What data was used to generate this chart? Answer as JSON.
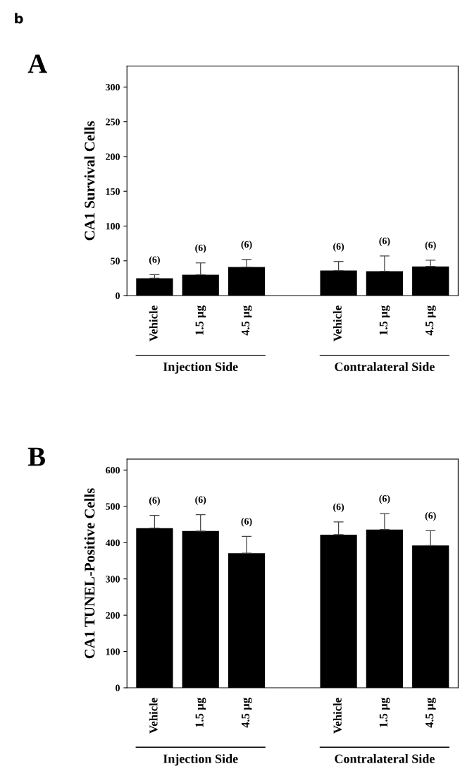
{
  "chart_data": [
    {
      "type": "bar",
      "title": "A",
      "ylabel": "CA1 Survival Cells",
      "categories": [
        "Vehicle",
        "1.5 µg",
        "4.5 µg",
        null,
        "Vehicle",
        "1.5 µg",
        "4.5 µg"
      ],
      "values": [
        25,
        30,
        41,
        null,
        36,
        35,
        42
      ],
      "errors": [
        [
          25,
          30
        ],
        [
          30,
          47
        ],
        [
          41,
          52
        ],
        null,
        [
          36,
          49
        ],
        [
          35,
          57
        ],
        [
          42,
          51
        ]
      ],
      "color": "#000000",
      "ylim": [
        0,
        330
      ],
      "yticks": [
        0,
        50,
        100,
        150,
        200,
        250,
        300
      ],
      "annotations": [
        "Injection Side",
        "Contralateral Side",
        "(6)",
        "(6)",
        "(6)",
        "(6)",
        "(6)",
        "(6)",
        "b"
      ]
    },
    {
      "type": "bar",
      "title": "B",
      "ylabel": "CA1 TUNEL-Positive Cells",
      "categories": [
        "Vehicle",
        "1.5 µg",
        "4.5 µg",
        null,
        "Vehicle",
        "1.5 µg",
        "4.5 µg"
      ],
      "values": [
        440,
        432,
        371,
        null,
        422,
        436,
        392
      ],
      "errors": [
        [
          440,
          475
        ],
        [
          432,
          477
        ],
        [
          371,
          417
        ],
        null,
        [
          422,
          457
        ],
        [
          436,
          480
        ],
        [
          392,
          433
        ]
      ],
      "color": "#000000",
      "ylim": [
        0,
        630
      ],
      "yticks": [
        0,
        100,
        200,
        300,
        400,
        500,
        600
      ],
      "annotations": [
        "Injection Side",
        "Contralateral Side",
        "(6)",
        "(6)",
        "(6)",
        "(6)",
        "(6)",
        "(6)"
      ]
    }
  ]
}
